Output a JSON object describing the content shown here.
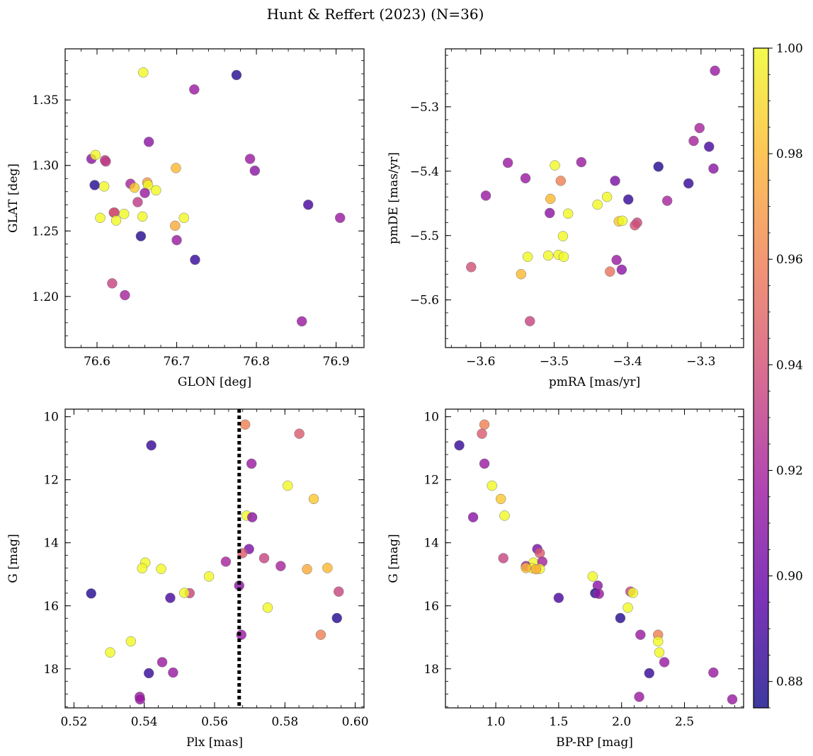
{
  "figure": {
    "title": "Hunt & Reffert (2023) (N=36)"
  },
  "colormap": {
    "name": "plasma",
    "range": [
      0.875,
      1.0
    ],
    "ticks": [
      0.88,
      0.9,
      0.92,
      0.94,
      0.96,
      0.98,
      1.0
    ],
    "tick_labels": [
      "0.88",
      "0.90",
      "0.92",
      "0.94",
      "0.96",
      "0.98",
      "1.00"
    ],
    "stops": [
      "#0d0887",
      "#5c01a6",
      "#9c179e",
      "#cc4778",
      "#ed7953",
      "#fdb42f",
      "#f0f921"
    ],
    "point_alpha": 0.8
  },
  "chart_data": [
    {
      "id": "glon_glat",
      "type": "scatter",
      "xlabel": "GLON [deg]",
      "ylabel": "GLAT [deg]",
      "xlim": [
        76.56,
        76.935
      ],
      "ylim": [
        1.161,
        1.389
      ],
      "xticks": [
        76.6,
        76.7,
        76.8,
        76.9
      ],
      "xtick_labels": [
        "76.6",
        "76.7",
        "76.8",
        "76.9"
      ],
      "yticks": [
        1.2,
        1.25,
        1.3,
        1.35
      ],
      "ytick_labels": [
        "1.20",
        "1.25",
        "1.30",
        "1.35"
      ],
      "points": [
        {
          "x": 76.658,
          "y": 1.371,
          "c": 1.0
        },
        {
          "x": 76.775,
          "y": 1.369,
          "c": 0.88
        },
        {
          "x": 76.722,
          "y": 1.358,
          "c": 0.915
        },
        {
          "x": 76.665,
          "y": 1.318,
          "c": 0.91
        },
        {
          "x": 76.593,
          "y": 1.305,
          "c": 0.91
        },
        {
          "x": 76.598,
          "y": 1.308,
          "c": 1.0
        },
        {
          "x": 76.61,
          "y": 1.304,
          "c": 0.935
        },
        {
          "x": 76.611,
          "y": 1.303,
          "c": 0.93
        },
        {
          "x": 76.792,
          "y": 1.305,
          "c": 0.915
        },
        {
          "x": 76.699,
          "y": 1.298,
          "c": 0.98
        },
        {
          "x": 76.798,
          "y": 1.296,
          "c": 0.91
        },
        {
          "x": 76.597,
          "y": 1.285,
          "c": 0.88
        },
        {
          "x": 76.609,
          "y": 1.284,
          "c": 1.0
        },
        {
          "x": 76.642,
          "y": 1.286,
          "c": 0.92
        },
        {
          "x": 76.663,
          "y": 1.287,
          "c": 0.97
        },
        {
          "x": 76.647,
          "y": 1.283,
          "c": 0.985
        },
        {
          "x": 76.664,
          "y": 1.285,
          "c": 1.0
        },
        {
          "x": 76.674,
          "y": 1.281,
          "c": 1.0
        },
        {
          "x": 76.66,
          "y": 1.279,
          "c": 0.915
        },
        {
          "x": 76.865,
          "y": 1.27,
          "c": 0.89
        },
        {
          "x": 76.651,
          "y": 1.272,
          "c": 0.93
        },
        {
          "x": 76.622,
          "y": 1.264,
          "c": 0.945
        },
        {
          "x": 76.621,
          "y": 1.264,
          "c": 0.94
        },
        {
          "x": 76.634,
          "y": 1.263,
          "c": 1.0
        },
        {
          "x": 76.604,
          "y": 1.26,
          "c": 1.0
        },
        {
          "x": 76.657,
          "y": 1.261,
          "c": 1.0
        },
        {
          "x": 76.709,
          "y": 1.26,
          "c": 1.0
        },
        {
          "x": 76.624,
          "y": 1.258,
          "c": 1.0
        },
        {
          "x": 76.905,
          "y": 1.26,
          "c": 0.915
        },
        {
          "x": 76.698,
          "y": 1.254,
          "c": 0.975
        },
        {
          "x": 76.655,
          "y": 1.246,
          "c": 0.88
        },
        {
          "x": 76.7,
          "y": 1.243,
          "c": 0.915
        },
        {
          "x": 76.723,
          "y": 1.228,
          "c": 0.885
        },
        {
          "x": 76.619,
          "y": 1.21,
          "c": 0.935
        },
        {
          "x": 76.635,
          "y": 1.201,
          "c": 0.92
        },
        {
          "x": 76.857,
          "y": 1.181,
          "c": 0.915
        }
      ]
    },
    {
      "id": "pm",
      "type": "scatter",
      "xlabel": "pmRA [mas/yr]",
      "ylabel": "pmDE [mas/yr]",
      "xlim": [
        -3.648,
        -3.242
      ],
      "ylim": [
        -5.674,
        -5.21
      ],
      "xticks": [
        -3.6,
        -3.5,
        -3.4,
        -3.3
      ],
      "xtick_labels": [
        "−3.6",
        "−3.5",
        "−3.4",
        "−3.3"
      ],
      "yticks": [
        -5.6,
        -5.5,
        -5.4,
        -5.3
      ],
      "ytick_labels": [
        "−5.6",
        "−5.5",
        "−5.4",
        "−5.3"
      ],
      "points": [
        {
          "x": -3.281,
          "y": -5.244,
          "c": 0.915
        },
        {
          "x": -3.302,
          "y": -5.333,
          "c": 0.92
        },
        {
          "x": -3.31,
          "y": -5.353,
          "c": 0.92
        },
        {
          "x": -3.289,
          "y": -5.362,
          "c": 0.89
        },
        {
          "x": -3.283,
          "y": -5.396,
          "c": 0.91
        },
        {
          "x": -3.317,
          "y": -5.419,
          "c": 0.885
        },
        {
          "x": -3.358,
          "y": -5.393,
          "c": 0.88
        },
        {
          "x": -3.563,
          "y": -5.387,
          "c": 0.915
        },
        {
          "x": -3.463,
          "y": -5.386,
          "c": 0.915
        },
        {
          "x": -3.499,
          "y": -5.391,
          "c": 1.0
        },
        {
          "x": -3.539,
          "y": -5.411,
          "c": 0.915
        },
        {
          "x": -3.417,
          "y": -5.415,
          "c": 0.905
        },
        {
          "x": -3.491,
          "y": -5.415,
          "c": 0.96
        },
        {
          "x": -3.593,
          "y": -5.438,
          "c": 0.915
        },
        {
          "x": -3.428,
          "y": -5.44,
          "c": 1.0
        },
        {
          "x": -3.505,
          "y": -5.443,
          "c": 0.98
        },
        {
          "x": -3.399,
          "y": -5.444,
          "c": 0.885
        },
        {
          "x": -3.346,
          "y": -5.446,
          "c": 0.92
        },
        {
          "x": -3.441,
          "y": -5.452,
          "c": 1.0
        },
        {
          "x": -3.506,
          "y": -5.465,
          "c": 0.91
        },
        {
          "x": -3.481,
          "y": -5.466,
          "c": 1.0
        },
        {
          "x": -3.412,
          "y": -5.478,
          "c": 0.985
        },
        {
          "x": -3.407,
          "y": -5.477,
          "c": 1.0
        },
        {
          "x": -3.387,
          "y": -5.48,
          "c": 0.935
        },
        {
          "x": -3.39,
          "y": -5.484,
          "c": 0.94
        },
        {
          "x": -3.488,
          "y": -5.501,
          "c": 1.0
        },
        {
          "x": -3.536,
          "y": -5.533,
          "c": 1.0
        },
        {
          "x": -3.508,
          "y": -5.531,
          "c": 1.0
        },
        {
          "x": -3.494,
          "y": -5.53,
          "c": 1.0
        },
        {
          "x": -3.487,
          "y": -5.533,
          "c": 1.0
        },
        {
          "x": -3.415,
          "y": -5.538,
          "c": 0.915
        },
        {
          "x": -3.613,
          "y": -5.549,
          "c": 0.94
        },
        {
          "x": -3.408,
          "y": -5.553,
          "c": 0.91
        },
        {
          "x": -3.424,
          "y": -5.556,
          "c": 0.955
        },
        {
          "x": -3.545,
          "y": -5.56,
          "c": 0.98
        },
        {
          "x": -3.533,
          "y": -5.633,
          "c": 0.935
        }
      ]
    },
    {
      "id": "plx_g",
      "type": "scatter",
      "xlabel": "Plx [mas]",
      "ylabel": "G [mag]",
      "xlim": [
        0.5175,
        0.6025
      ],
      "ylim": [
        19.24,
        9.76
      ],
      "y_inverted": true,
      "xticks": [
        0.52,
        0.54,
        0.56,
        0.58,
        0.6
      ],
      "xtick_labels": [
        "0.52",
        "0.54",
        "0.56",
        "0.58",
        "0.60"
      ],
      "yticks": [
        10,
        12,
        14,
        16,
        18
      ],
      "ytick_labels": [
        "10",
        "12",
        "14",
        "16",
        "18"
      ],
      "vline": {
        "x": 0.567,
        "style": "dotted",
        "color": "#000000"
      },
      "points": [
        {
          "x": 0.5687,
          "y": 10.25,
          "c": 0.96
        },
        {
          "x": 0.5841,
          "y": 10.54,
          "c": 0.945
        },
        {
          "x": 0.542,
          "y": 10.91,
          "c": 0.885
        },
        {
          "x": 0.5705,
          "y": 11.49,
          "c": 0.915
        },
        {
          "x": 0.5808,
          "y": 12.19,
          "c": 1.0
        },
        {
          "x": 0.5882,
          "y": 12.61,
          "c": 0.985
        },
        {
          "x": 0.5691,
          "y": 13.14,
          "c": 1.0
        },
        {
          "x": 0.5707,
          "y": 13.19,
          "c": 0.91
        },
        {
          "x": 0.5698,
          "y": 14.2,
          "c": 0.905
        },
        {
          "x": 0.5679,
          "y": 14.33,
          "c": 0.945
        },
        {
          "x": 0.5741,
          "y": 14.49,
          "c": 0.935
        },
        {
          "x": 0.5403,
          "y": 14.63,
          "c": 1.0
        },
        {
          "x": 0.5632,
          "y": 14.6,
          "c": 0.92
        },
        {
          "x": 0.5788,
          "y": 14.74,
          "c": 0.92
        },
        {
          "x": 0.5394,
          "y": 14.81,
          "c": 1.0
        },
        {
          "x": 0.5448,
          "y": 14.83,
          "c": 1.0
        },
        {
          "x": 0.5863,
          "y": 14.84,
          "c": 0.975
        },
        {
          "x": 0.5921,
          "y": 14.8,
          "c": 0.98
        },
        {
          "x": 0.5584,
          "y": 15.07,
          "c": 1.0
        },
        {
          "x": 0.567,
          "y": 15.36,
          "c": 0.91
        },
        {
          "x": 0.5529,
          "y": 15.6,
          "c": 0.935
        },
        {
          "x": 0.5514,
          "y": 15.59,
          "c": 1.0
        },
        {
          "x": 0.5249,
          "y": 15.61,
          "c": 0.88
        },
        {
          "x": 0.5953,
          "y": 15.55,
          "c": 0.935
        },
        {
          "x": 0.5474,
          "y": 15.75,
          "c": 0.89
        },
        {
          "x": 0.5751,
          "y": 16.06,
          "c": 1.0
        },
        {
          "x": 0.5948,
          "y": 16.39,
          "c": 0.88
        },
        {
          "x": 0.5676,
          "y": 16.92,
          "c": 0.915
        },
        {
          "x": 0.5902,
          "y": 16.92,
          "c": 0.96
        },
        {
          "x": 0.5362,
          "y": 17.13,
          "c": 1.0
        },
        {
          "x": 0.5303,
          "y": 17.48,
          "c": 1.0
        },
        {
          "x": 0.5451,
          "y": 17.79,
          "c": 0.915
        },
        {
          "x": 0.5413,
          "y": 18.14,
          "c": 0.885
        },
        {
          "x": 0.5482,
          "y": 18.12,
          "c": 0.915
        },
        {
          "x": 0.5387,
          "y": 18.89,
          "c": 0.915
        },
        {
          "x": 0.5388,
          "y": 18.97,
          "c": 0.915
        }
      ]
    },
    {
      "id": "cmd",
      "type": "scatter",
      "xlabel": "BP-RP [mag]",
      "ylabel": "G [mag]",
      "xlim": [
        0.6,
        2.97
      ],
      "ylim": [
        19.24,
        9.76
      ],
      "y_inverted": true,
      "xticks": [
        1.0,
        1.5,
        2.0,
        2.5
      ],
      "xtick_labels": [
        "1.0",
        "1.5",
        "2.0",
        "2.5"
      ],
      "yticks": [
        10,
        12,
        14,
        16,
        18
      ],
      "ytick_labels": [
        "10",
        "12",
        "14",
        "16",
        "18"
      ],
      "points": [
        {
          "x": 0.91,
          "y": 10.25,
          "c": 0.96
        },
        {
          "x": 0.89,
          "y": 10.54,
          "c": 0.945
        },
        {
          "x": 0.71,
          "y": 10.91,
          "c": 0.885
        },
        {
          "x": 0.91,
          "y": 11.49,
          "c": 0.915
        },
        {
          "x": 0.97,
          "y": 12.19,
          "c": 1.0
        },
        {
          "x": 1.04,
          "y": 12.61,
          "c": 0.985
        },
        {
          "x": 1.07,
          "y": 13.14,
          "c": 1.0
        },
        {
          "x": 0.82,
          "y": 13.19,
          "c": 0.91
        },
        {
          "x": 1.33,
          "y": 14.2,
          "c": 0.905
        },
        {
          "x": 1.35,
          "y": 14.33,
          "c": 0.945
        },
        {
          "x": 1.06,
          "y": 14.49,
          "c": 0.935
        },
        {
          "x": 1.3,
          "y": 14.63,
          "c": 1.0
        },
        {
          "x": 1.37,
          "y": 14.6,
          "c": 0.92
        },
        {
          "x": 1.24,
          "y": 14.74,
          "c": 0.92
        },
        {
          "x": 1.29,
          "y": 14.81,
          "c": 1.0
        },
        {
          "x": 1.35,
          "y": 14.83,
          "c": 1.0
        },
        {
          "x": 1.32,
          "y": 14.84,
          "c": 0.975
        },
        {
          "x": 1.24,
          "y": 14.8,
          "c": 0.98
        },
        {
          "x": 1.77,
          "y": 15.07,
          "c": 1.0
        },
        {
          "x": 1.81,
          "y": 15.36,
          "c": 0.91
        },
        {
          "x": 2.07,
          "y": 15.55,
          "c": 0.935
        },
        {
          "x": 2.09,
          "y": 15.59,
          "c": 1.0
        },
        {
          "x": 1.79,
          "y": 15.6,
          "c": 0.88
        },
        {
          "x": 1.82,
          "y": 15.62,
          "c": 0.915
        },
        {
          "x": 1.5,
          "y": 15.75,
          "c": 0.89
        },
        {
          "x": 2.05,
          "y": 16.06,
          "c": 1.0
        },
        {
          "x": 1.99,
          "y": 16.39,
          "c": 0.88
        },
        {
          "x": 2.15,
          "y": 16.92,
          "c": 0.915
        },
        {
          "x": 2.29,
          "y": 16.92,
          "c": 0.96
        },
        {
          "x": 2.29,
          "y": 17.13,
          "c": 1.0
        },
        {
          "x": 2.3,
          "y": 17.48,
          "c": 1.0
        },
        {
          "x": 2.34,
          "y": 17.79,
          "c": 0.915
        },
        {
          "x": 2.22,
          "y": 18.14,
          "c": 0.885
        },
        {
          "x": 2.73,
          "y": 18.12,
          "c": 0.915
        },
        {
          "x": 2.14,
          "y": 18.89,
          "c": 0.915
        },
        {
          "x": 2.88,
          "y": 18.97,
          "c": 0.915
        }
      ]
    }
  ]
}
